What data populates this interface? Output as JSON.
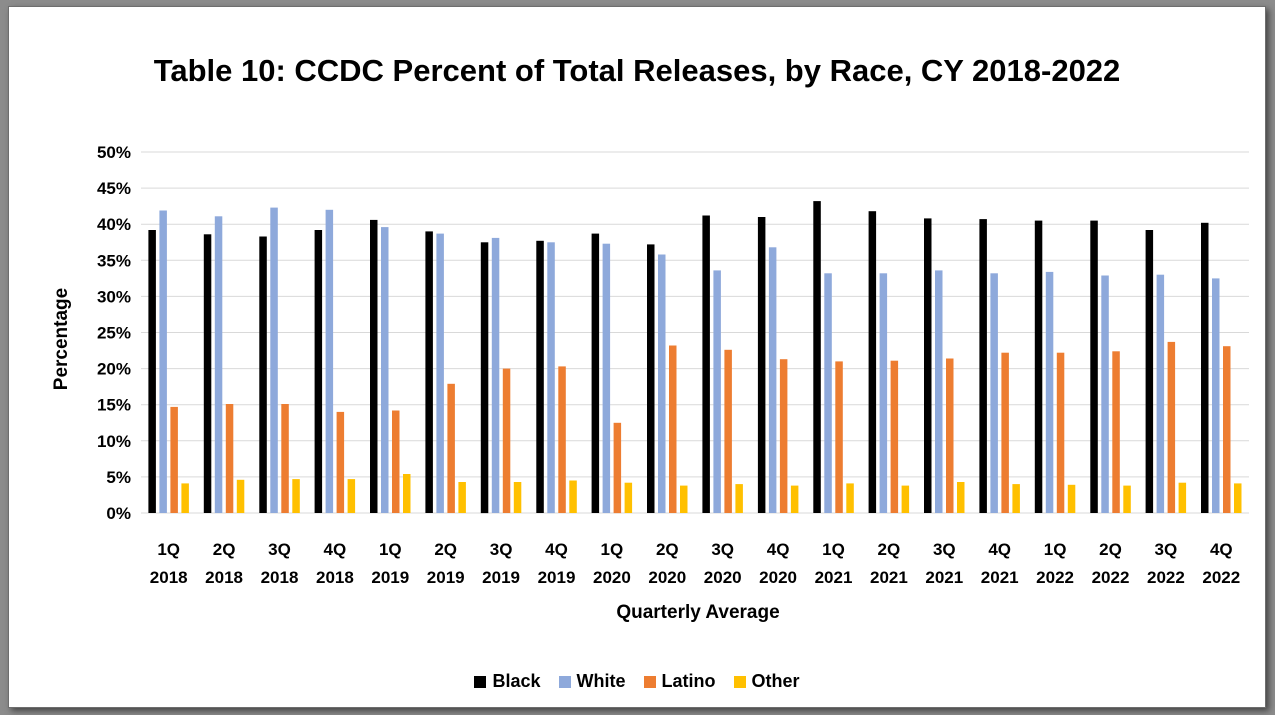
{
  "chart_data": {
    "type": "bar",
    "title": "Table 10:  CCDC Percent of Total Releases, by Race, CY 2018-2022",
    "xlabel": "Quarterly Average",
    "ylabel": "Percentage",
    "ylim": [
      0,
      50
    ],
    "yticks": [
      "0%",
      "5%",
      "10%",
      "15%",
      "20%",
      "25%",
      "30%",
      "35%",
      "40%",
      "45%",
      "50%"
    ],
    "grid": true,
    "legend_position": "bottom",
    "categories": [
      [
        "1Q",
        "2018"
      ],
      [
        "2Q",
        "2018"
      ],
      [
        "3Q",
        "2018"
      ],
      [
        "4Q",
        "2018"
      ],
      [
        "1Q",
        "2019"
      ],
      [
        "2Q",
        "2019"
      ],
      [
        "3Q",
        "2019"
      ],
      [
        "4Q",
        "2019"
      ],
      [
        "1Q",
        "2020"
      ],
      [
        "2Q",
        "2020"
      ],
      [
        "3Q",
        "2020"
      ],
      [
        "4Q",
        "2020"
      ],
      [
        "1Q",
        "2021"
      ],
      [
        "2Q",
        "2021"
      ],
      [
        "3Q",
        "2021"
      ],
      [
        "4Q",
        "2021"
      ],
      [
        "1Q",
        "2022"
      ],
      [
        "2Q",
        "2022"
      ],
      [
        "3Q",
        "2022"
      ],
      [
        "4Q",
        "2022"
      ]
    ],
    "series": [
      {
        "name": "Black",
        "color": "#000000",
        "values": [
          39.2,
          38.6,
          38.3,
          39.2,
          40.6,
          39.0,
          37.5,
          37.7,
          38.7,
          37.2,
          41.2,
          41.0,
          43.2,
          41.8,
          40.8,
          40.7,
          40.5,
          40.5,
          39.2,
          40.2
        ]
      },
      {
        "name": "White",
        "color": "#8EA9DB",
        "values": [
          41.9,
          41.1,
          42.3,
          42.0,
          39.6,
          38.7,
          38.1,
          37.5,
          37.3,
          35.8,
          33.6,
          36.8,
          33.2,
          33.2,
          33.6,
          33.2,
          33.4,
          32.9,
          33.0,
          32.5
        ]
      },
      {
        "name": "Latino",
        "color": "#ED7D31",
        "values": [
          14.7,
          15.1,
          15.1,
          14.0,
          14.2,
          17.9,
          20.0,
          20.3,
          12.5,
          23.2,
          22.6,
          21.3,
          21.0,
          21.1,
          21.4,
          22.2,
          22.2,
          22.4,
          23.7,
          23.1
        ]
      },
      {
        "name": "Other",
        "color": "#FFC000",
        "values": [
          4.1,
          4.6,
          4.7,
          4.7,
          5.4,
          4.3,
          4.3,
          4.5,
          4.2,
          3.8,
          4.0,
          3.8,
          4.1,
          3.8,
          4.3,
          4.0,
          3.9,
          3.8,
          4.2,
          4.1
        ]
      }
    ]
  }
}
